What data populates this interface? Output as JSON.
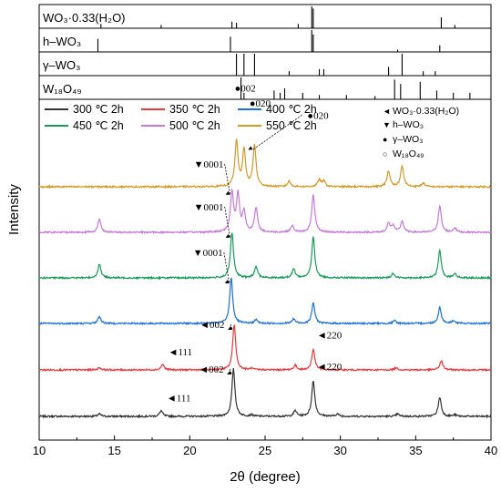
{
  "chart_data": {
    "type": "line",
    "xlabel": "2θ (degree)",
    "ylabel": "Intensity",
    "xlim": [
      10,
      40
    ],
    "xticks": [
      10,
      15,
      20,
      25,
      30,
      35,
      40
    ],
    "reference_panels": [
      {
        "label": "WO₃·0.33(H₂O)",
        "peaks": [
          [
            14.1,
            0.2
          ],
          [
            18.1,
            0.15
          ],
          [
            22.8,
            0.3
          ],
          [
            23.1,
            0.25
          ],
          [
            28.1,
            1.0
          ],
          [
            28.2,
            0.9
          ],
          [
            27.2,
            0.2
          ],
          [
            36.7,
            0.5
          ],
          [
            37.6,
            0.15
          ]
        ]
      },
      {
        "label": "h–WO₃",
        "peaks": [
          [
            13.9,
            0.6
          ],
          [
            22.7,
            0.7
          ],
          [
            28.1,
            1.0
          ],
          [
            28.2,
            0.8
          ],
          [
            36.6,
            0.3
          ],
          [
            33.8,
            0.1
          ]
        ]
      },
      {
        "label": "γ–WO₃",
        "peaks": [
          [
            23.1,
            1.0
          ],
          [
            23.6,
            1.0
          ],
          [
            24.3,
            1.0
          ],
          [
            26.6,
            0.2
          ],
          [
            28.6,
            0.3
          ],
          [
            28.9,
            0.3
          ],
          [
            33.2,
            0.4
          ],
          [
            34.1,
            1.0
          ],
          [
            35.5,
            0.2
          ],
          [
            36.3,
            0.2
          ]
        ]
      },
      {
        "label": "W₁₈O₄₉",
        "peaks": [
          [
            23.4,
            1.0
          ],
          [
            23.6,
            0.3
          ],
          [
            25.6,
            0.4
          ],
          [
            26.0,
            0.3
          ],
          [
            26.3,
            0.5
          ],
          [
            27.5,
            0.3
          ],
          [
            28.6,
            0.2
          ],
          [
            30.4,
            0.2
          ],
          [
            32.3,
            0.15
          ],
          [
            33.6,
            0.9
          ],
          [
            34.0,
            0.7
          ],
          [
            35.3,
            0.8
          ],
          [
            36.4,
            0.4
          ],
          [
            37.5,
            0.3
          ],
          [
            38.6,
            0.3
          ]
        ]
      }
    ],
    "series": [
      {
        "name": "300 ℃ 2h",
        "color": "#333333",
        "peaks": [
          [
            14.0,
            0.05
          ],
          [
            18.1,
            0.12
          ],
          [
            22.9,
            1.0
          ],
          [
            24.1,
            0.03
          ],
          [
            27.0,
            0.12
          ],
          [
            28.2,
            0.75
          ],
          [
            29.8,
            0.05
          ],
          [
            33.8,
            0.05
          ],
          [
            36.6,
            0.4
          ],
          [
            37.6,
            0.03
          ]
        ]
      },
      {
        "name": "350 ℃ 2h",
        "color": "#e8393c",
        "peaks": [
          [
            14.0,
            0.05
          ],
          [
            18.2,
            0.12
          ],
          [
            22.95,
            1.0
          ],
          [
            24.1,
            0.03
          ],
          [
            27.0,
            0.1
          ],
          [
            28.2,
            0.45
          ],
          [
            33.7,
            0.05
          ],
          [
            36.7,
            0.2
          ]
        ]
      },
      {
        "name": "400 ℃ 2h",
        "color": "#1f6fd6",
        "peaks": [
          [
            14.0,
            0.15
          ],
          [
            22.75,
            1.0
          ],
          [
            24.4,
            0.08
          ],
          [
            26.9,
            0.1
          ],
          [
            28.2,
            0.45
          ],
          [
            33.6,
            0.06
          ],
          [
            36.6,
            0.35
          ],
          [
            37.5,
            0.06
          ]
        ]
      },
      {
        "name": "450 ℃ 2h",
        "color": "#1a9b5c",
        "peaks": [
          [
            14.0,
            0.3
          ],
          [
            22.8,
            1.0
          ],
          [
            24.4,
            0.25
          ],
          [
            26.9,
            0.2
          ],
          [
            28.2,
            0.9
          ],
          [
            33.5,
            0.1
          ],
          [
            36.6,
            0.6
          ],
          [
            37.6,
            0.1
          ]
        ]
      },
      {
        "name": "500 ℃ 2h",
        "color": "#c57ad9",
        "peaks": [
          [
            14.0,
            0.3
          ],
          [
            22.8,
            0.9
          ],
          [
            23.2,
            0.85
          ],
          [
            23.6,
            0.45
          ],
          [
            24.4,
            0.55
          ],
          [
            26.8,
            0.15
          ],
          [
            28.2,
            0.85
          ],
          [
            33.2,
            0.2
          ],
          [
            33.5,
            0.15
          ],
          [
            34.1,
            0.25
          ],
          [
            36.6,
            0.6
          ],
          [
            37.6,
            0.1
          ]
        ]
      },
      {
        "name": "550 ℃ 2h",
        "color": "#d29a2a",
        "peaks": [
          [
            23.1,
            1.0
          ],
          [
            23.6,
            0.8
          ],
          [
            24.3,
            0.9
          ],
          [
            26.6,
            0.12
          ],
          [
            28.6,
            0.15
          ],
          [
            28.9,
            0.12
          ],
          [
            33.2,
            0.35
          ],
          [
            34.1,
            0.45
          ],
          [
            35.5,
            0.08
          ]
        ]
      }
    ],
    "phase_legend": [
      {
        "marker": "◄",
        "text": "WO₃·0.33(H₂O)"
      },
      {
        "marker": "▼",
        "text": "h–WO₃"
      },
      {
        "marker": "●",
        "text": "γ–WO₃"
      },
      {
        "marker": "○",
        "text": "W₁₈O₄₉"
      }
    ],
    "annotations": [
      {
        "series": 5,
        "x": 23.1,
        "text": "●002"
      },
      {
        "series": 5,
        "x": 23.6,
        "text": "●020"
      },
      {
        "series": 5,
        "x": 24.3,
        "text": "●020"
      },
      {
        "series": 4,
        "x": 22.8,
        "text": "▼0001"
      },
      {
        "series": 3,
        "x": 22.8,
        "text": "▼0001"
      },
      {
        "series": 2,
        "x": 22.75,
        "text": "▼0001"
      },
      {
        "series": 1,
        "x": 22.95,
        "text": "◄002"
      },
      {
        "series": 1,
        "x": 18.2,
        "text": "◄111"
      },
      {
        "series": 1,
        "x": 28.2,
        "text": "◄220"
      },
      {
        "series": 0,
        "x": 22.9,
        "text": "◄002"
      },
      {
        "series": 0,
        "x": 18.1,
        "text": "◄111"
      },
      {
        "series": 0,
        "x": 28.2,
        "text": "◄220"
      }
    ]
  }
}
